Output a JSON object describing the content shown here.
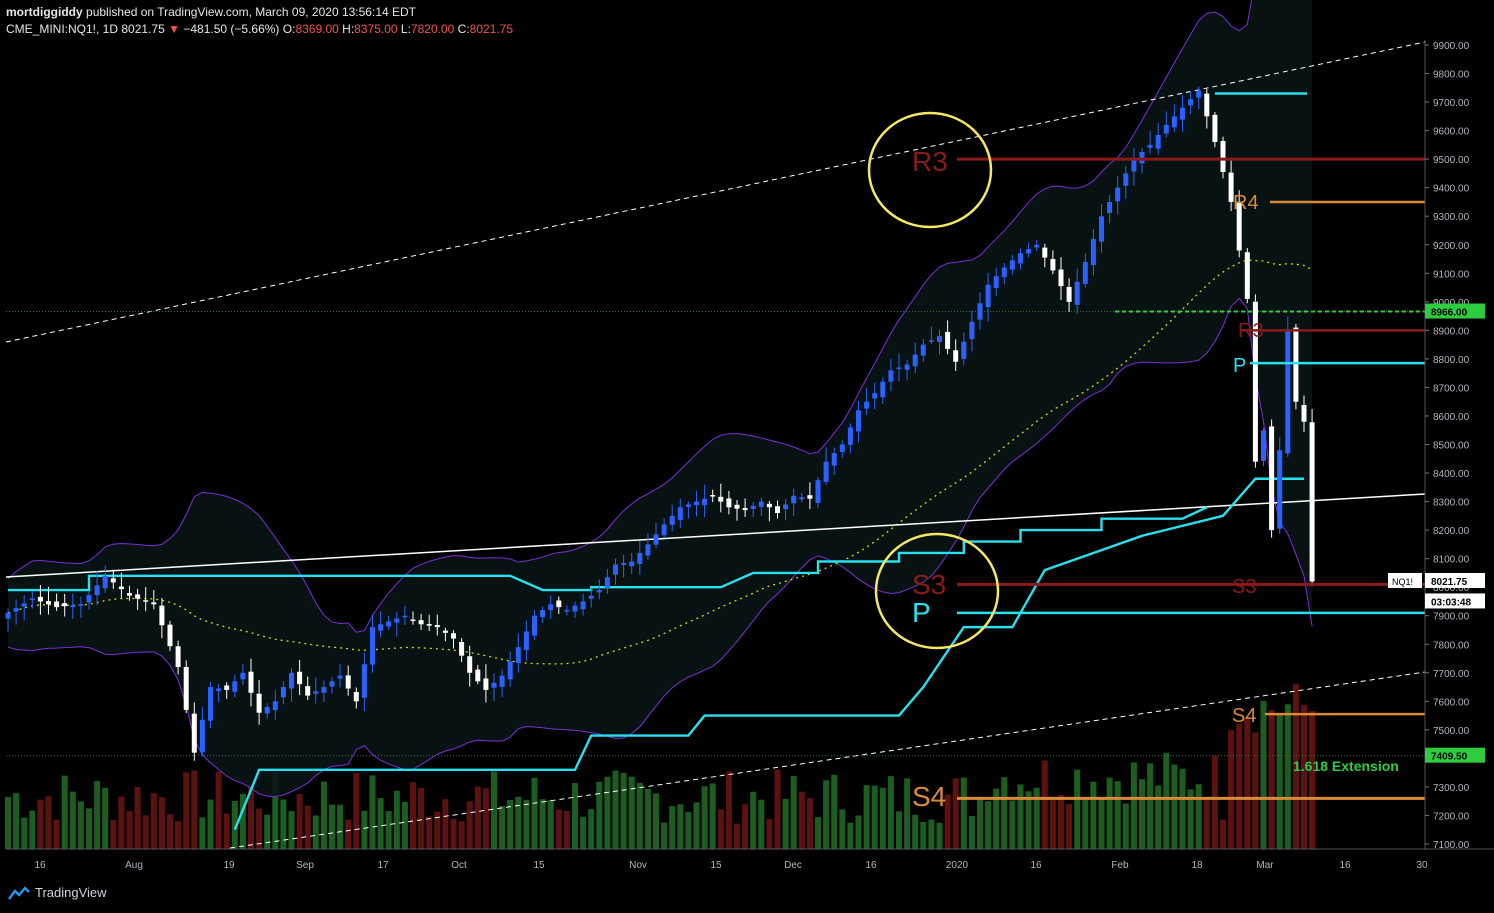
{
  "header": {
    "author": "mortdiggiddy",
    "published": "published on TradingView.com, March 09, 2020 13:56:14 EDT",
    "symbol": "CME_MINI:NQ1!, 1D",
    "last": "8021.75",
    "change_arrow": "▼",
    "change": "−481.50 (−5.66%)",
    "o_label": "O:",
    "o": "8369.00",
    "h_label": "H:",
    "h": "8375.00",
    "l_label": "L:",
    "l": "7820.00",
    "c_label": "C:",
    "c": "8021.75"
  },
  "footer": {
    "brand": "TradingView",
    "logo_icon": "tradingview-logo-icon"
  },
  "colors": {
    "background": "#000000",
    "up_candle": "#2962ff",
    "down_candle": "#ffffff",
    "supertrend": "#29e0ee",
    "bollinger": "#7b2fd6",
    "ma": "#c8e000",
    "r3": "#8b1a1a",
    "r4": "#d98b3a",
    "s3": "#8b1a1a",
    "s4": "#d98b3a",
    "pivot": "#29e0ee",
    "volume_up": "#1b5e20",
    "volume_down": "#5d1212",
    "circle": "#f5e663"
  },
  "chart_data": {
    "type": "candlestick",
    "ylim": [
      7100,
      9900
    ],
    "y_ticks": [
      "9900.00",
      "9800.00",
      "9700.00",
      "9600.00",
      "9500.00",
      "9400.00",
      "9300.00",
      "9200.00",
      "9100.00",
      "9000.00",
      "8900.00",
      "8800.00",
      "8700.00",
      "8600.00",
      "8500.00",
      "8400.00",
      "8300.00",
      "8200.00",
      "8100.00",
      "8000.00",
      "7900.00",
      "7800.00",
      "7700.00",
      "7600.00",
      "7500.00",
      "7400.00",
      "7300.00",
      "7200.00",
      "7100.00"
    ],
    "x_ticks": [
      "16",
      "Aug",
      "19",
      "Sep",
      "17",
      "Oct",
      "15",
      "Nov",
      "15",
      "Dec",
      "16",
      "2020",
      "16",
      "Feb",
      "18",
      "Mar",
      "16",
      "30"
    ],
    "price_labels": {
      "last_value": "8021.75",
      "last_symbol": "NQ1!",
      "countdown": "03:03:48",
      "green_level": "8966.00",
      "low_level": "7409.50"
    },
    "pivot_labels": {
      "r3_big": "R3",
      "r4": "R4",
      "r3_small": "R3",
      "p_small": "P",
      "s3_big": "S3",
      "p_big": "P",
      "s3_small": "S3",
      "s4_small": "S4",
      "s4_big": "S4",
      "extension": "1.618 Extension"
    },
    "pivot_levels": {
      "r3_old": 9500,
      "r4": 9350,
      "r3_new": 8900,
      "p_new": 8785,
      "s3_new": 8010,
      "p_old": 7910,
      "s4_new": 7555,
      "s4_old": 7260
    },
    "close_series_approx": [
      [
        0,
        7910
      ],
      [
        3,
        7960
      ],
      [
        6,
        7930
      ],
      [
        9,
        7940
      ],
      [
        12,
        8040
      ],
      [
        15,
        7970
      ],
      [
        18,
        7940
      ],
      [
        21,
        7720
      ],
      [
        23,
        7420
      ],
      [
        25,
        7650
      ],
      [
        27,
        7640
      ],
      [
        29,
        7700
      ],
      [
        31,
        7560
      ],
      [
        33,
        7600
      ],
      [
        35,
        7700
      ],
      [
        37,
        7620
      ],
      [
        39,
        7650
      ],
      [
        41,
        7690
      ],
      [
        43,
        7600
      ],
      [
        45,
        7860
      ],
      [
        47,
        7880
      ],
      [
        49,
        7900
      ],
      [
        51,
        7870
      ],
      [
        53,
        7860
      ],
      [
        55,
        7820
      ],
      [
        57,
        7700
      ],
      [
        59,
        7640
      ],
      [
        61,
        7690
      ],
      [
        63,
        7790
      ],
      [
        65,
        7900
      ],
      [
        67,
        7940
      ],
      [
        69,
        7920
      ],
      [
        71,
        7950
      ],
      [
        73,
        7990
      ],
      [
        75,
        8080
      ],
      [
        77,
        8090
      ],
      [
        79,
        8150
      ],
      [
        81,
        8220
      ],
      [
        83,
        8280
      ],
      [
        85,
        8300
      ],
      [
        87,
        8320
      ],
      [
        89,
        8280
      ],
      [
        91,
        8270
      ],
      [
        93,
        8300
      ],
      [
        95,
        8260
      ],
      [
        97,
        8320
      ],
      [
        99,
        8310
      ],
      [
        101,
        8440
      ],
      [
        103,
        8500
      ],
      [
        105,
        8620
      ],
      [
        107,
        8680
      ],
      [
        109,
        8760
      ],
      [
        111,
        8780
      ],
      [
        113,
        8850
      ],
      [
        115,
        8880
      ],
      [
        117,
        8790
      ],
      [
        119,
        8930
      ],
      [
        121,
        9060
      ],
      [
        123,
        9120
      ],
      [
        125,
        9170
      ],
      [
        127,
        9200
      ],
      [
        129,
        9110
      ],
      [
        131,
        9000
      ],
      [
        133,
        9140
      ],
      [
        135,
        9300
      ],
      [
        137,
        9400
      ],
      [
        139,
        9500
      ],
      [
        141,
        9550
      ],
      [
        143,
        9620
      ],
      [
        145,
        9680
      ],
      [
        147,
        9740
      ],
      [
        149,
        9560
      ],
      [
        151,
        9350
      ],
      [
        153,
        9010
      ],
      [
        154,
        8440
      ],
      [
        155,
        8550
      ],
      [
        156,
        8200
      ],
      [
        157,
        8480
      ],
      [
        158,
        8900
      ],
      [
        159,
        8650
      ],
      [
        160,
        8580
      ],
      [
        161,
        8020
      ]
    ],
    "volume_note": "daily volume bars, green up / red down"
  }
}
